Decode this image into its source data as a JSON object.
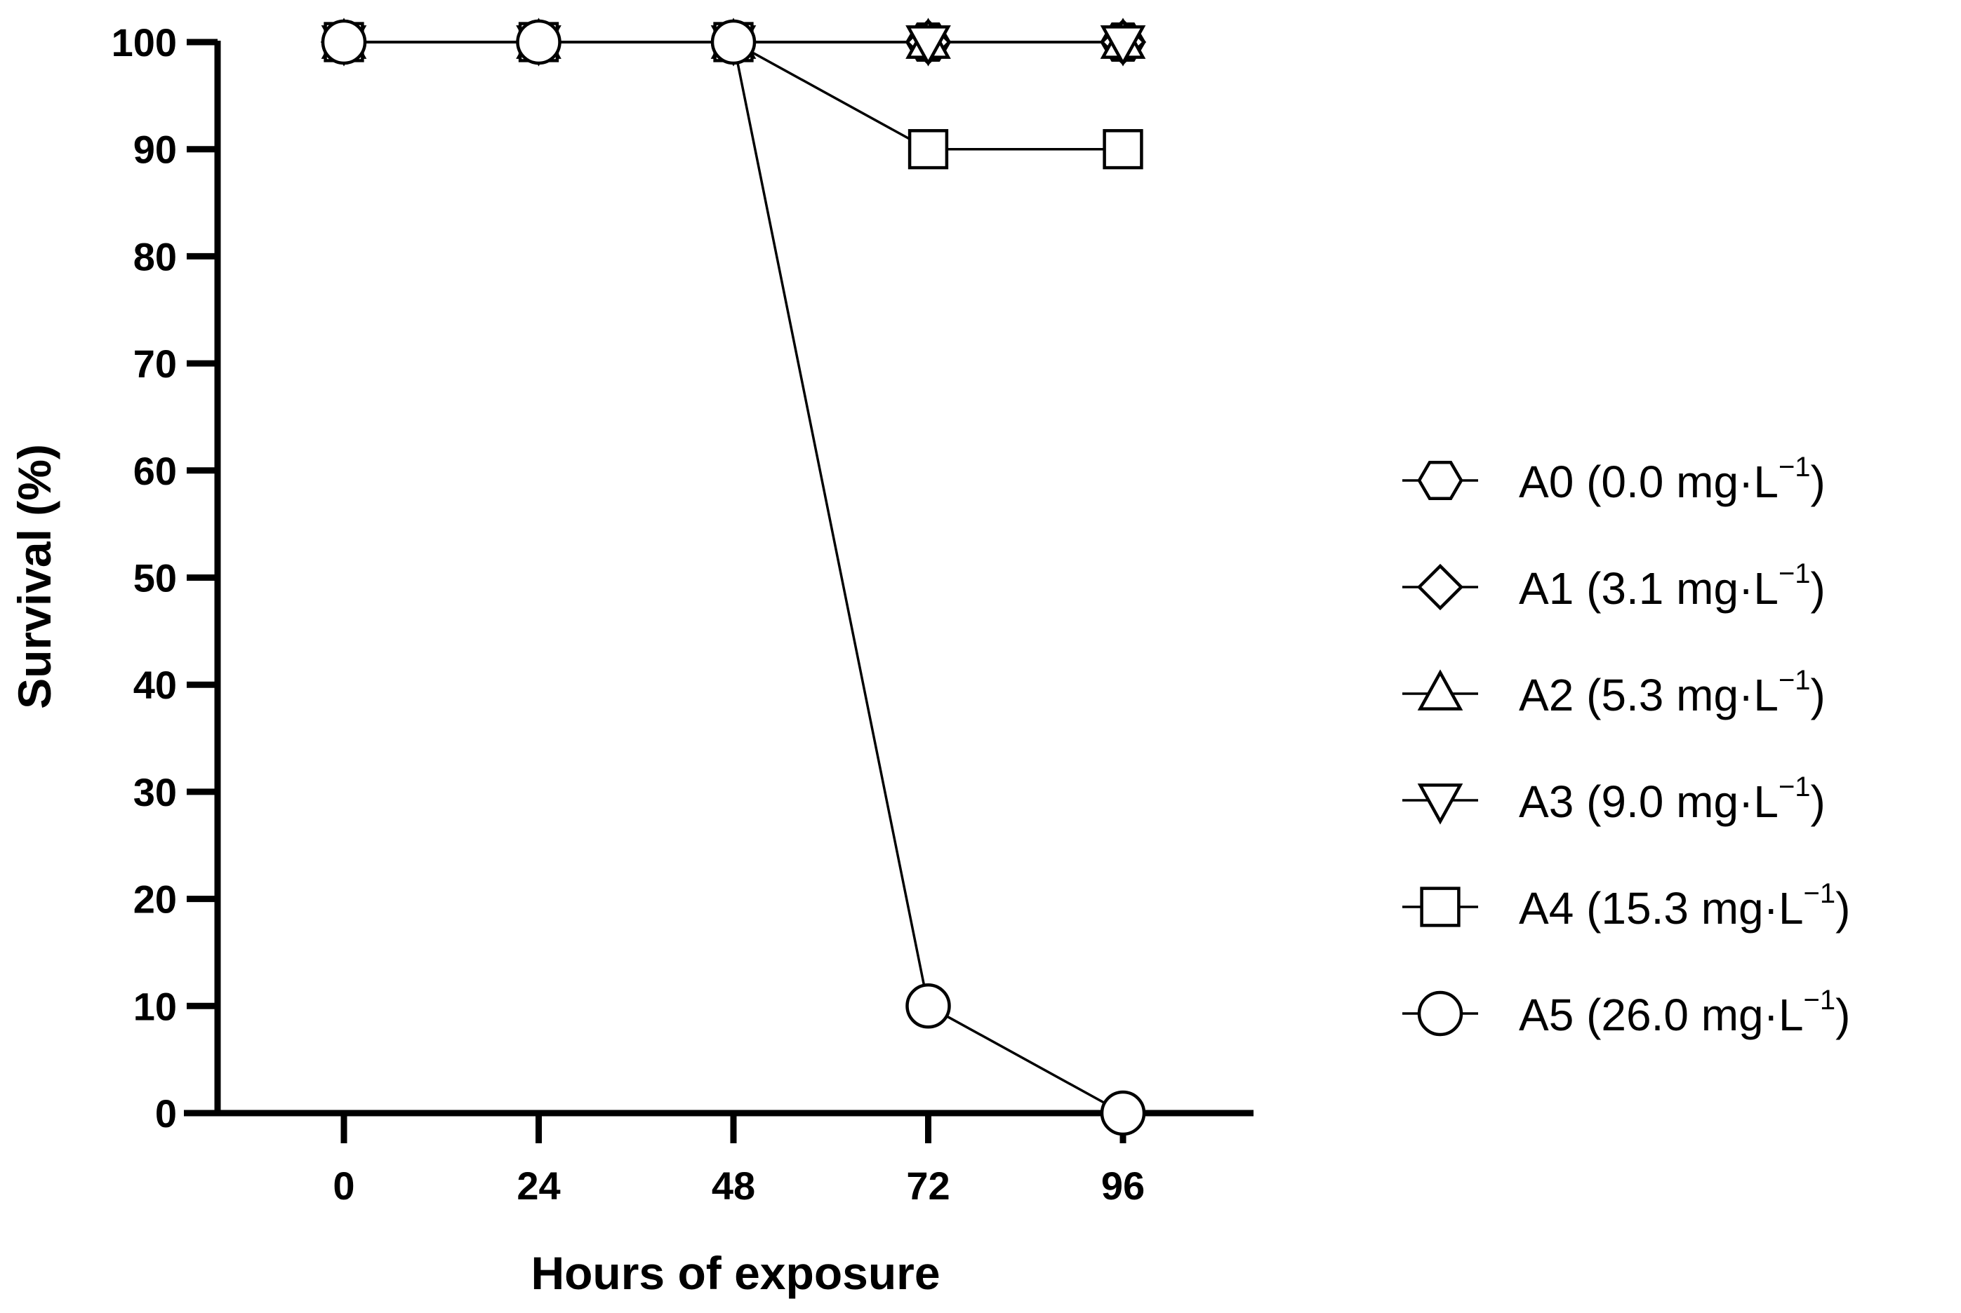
{
  "chart_data": {
    "type": "line",
    "xlabel": "Hours of exposure",
    "ylabel": "Survival (%)",
    "x": [
      0,
      24,
      48,
      72,
      96
    ],
    "x_ticks": [
      "0",
      "24",
      "48",
      "72",
      "96"
    ],
    "y_ticks": [
      "0",
      "10",
      "20",
      "30",
      "40",
      "50",
      "60",
      "70",
      "80",
      "90",
      "100"
    ],
    "ylim": [
      0,
      100
    ],
    "grid": false,
    "legend_position": "right",
    "series": [
      {
        "name": "A0 (0.0 mg·L",
        "sup": "−1",
        "close": ")",
        "marker": "hexagon",
        "values": [
          100,
          100,
          100,
          100,
          100
        ]
      },
      {
        "name": "A1 (3.1 mg·L",
        "sup": "−1",
        "close": ")",
        "marker": "diamond",
        "values": [
          100,
          100,
          100,
          100,
          100
        ]
      },
      {
        "name": "A2 (5.3 mg·L",
        "sup": "−1",
        "close": ")",
        "marker": "triangle-up",
        "values": [
          100,
          100,
          100,
          100,
          100
        ]
      },
      {
        "name": "A3 (9.0 mg·L",
        "sup": "−1",
        "close": ")",
        "marker": "triangle-down",
        "values": [
          100,
          100,
          100,
          100,
          100
        ]
      },
      {
        "name": "A4 (15.3 mg·L",
        "sup": "−1",
        "close": ")",
        "marker": "square",
        "values": [
          100,
          100,
          100,
          90,
          90
        ]
      },
      {
        "name": "A5 (26.0 mg·L",
        "sup": "−1",
        "close": ")",
        "marker": "circle",
        "values": [
          100,
          100,
          100,
          10,
          0
        ]
      }
    ],
    "colors": {
      "line": "#000000",
      "marker_fill": "#ffffff"
    }
  }
}
